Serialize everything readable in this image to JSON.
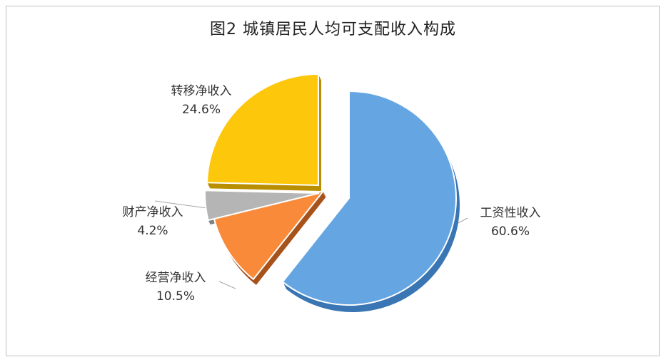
{
  "title": "图2  城镇居民人均可支配收入构成",
  "chart_data": {
    "type": "pie",
    "title": "图2  城镇居民人均可支配收入构成",
    "slices": [
      {
        "name": "工资性收入",
        "value": 60.6,
        "label": "60.6%",
        "color": "#65a6e2",
        "side": "#3a76b3"
      },
      {
        "name": "经营净收入",
        "value": 10.5,
        "label": "10.5%",
        "color": "#f98a3a",
        "side": "#a7521b"
      },
      {
        "name": "财产净收入",
        "value": 4.2,
        "label": "4.2%",
        "color": "#b5b5b5",
        "side": "#808080"
      },
      {
        "name": "转移净收入",
        "value": 24.6,
        "label": "24.6%",
        "color": "#fdc70b",
        "side": "#b98f00"
      }
    ],
    "start_angle_deg": 0,
    "direction": "clockwise",
    "exploded": true,
    "legend": "none",
    "data_labels": "outside"
  }
}
